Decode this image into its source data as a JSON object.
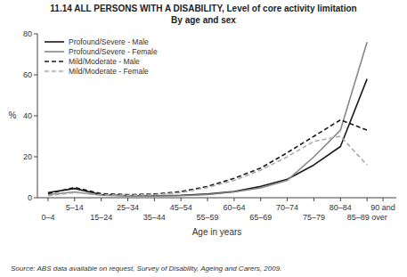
{
  "chart_data": {
    "type": "line",
    "title": "11.14   ALL PERSONS WITH A DISABILITY, Level of core activity limitation",
    "subtitle": "By age and sex",
    "xlabel": "Age in years",
    "ylabel": "%",
    "source": "Source: ABS data available on request,  Survey of Disability, Ageing and Carers,  2009.",
    "categories": [
      "0–4",
      "5–14",
      "15–24",
      "25–34",
      "35–44",
      "45–54",
      "55–59",
      "60–64",
      "65–69",
      "70–74",
      "75–79",
      "80–84",
      "85–89 over"
    ],
    "annotations": [
      {
        "text": "90 and"
      }
    ],
    "ylim": [
      0,
      80
    ],
    "yticks": [
      0,
      20,
      40,
      60,
      80
    ],
    "grid": false,
    "legend": "upper left",
    "series": [
      {
        "name": "Profound/Severe - Male",
        "color": "#1a1a1a",
        "line_style": "solid",
        "values": [
          2.5,
          4.5,
          1.5,
          1.0,
          1.0,
          1.2,
          1.8,
          3.0,
          5.5,
          9.0,
          16.0,
          25.0,
          58.0
        ]
      },
      {
        "name": "Profound/Severe - Female",
        "color": "#888888",
        "line_style": "solid",
        "values": [
          1.5,
          2.8,
          1.2,
          0.8,
          0.8,
          1.0,
          1.5,
          2.8,
          4.8,
          8.5,
          20.0,
          33.0,
          76.0
        ]
      },
      {
        "name": "Mild/Moderate - Male",
        "color": "#1a1a1a",
        "line_style": "dashed",
        "values": [
          2.0,
          5.0,
          2.0,
          1.5,
          1.8,
          3.0,
          5.5,
          9.5,
          14.5,
          22.0,
          30.0,
          38.0,
          33.0
        ]
      },
      {
        "name": "Mild/Moderate - Female",
        "color": "#aaaaaa",
        "line_style": "dashed",
        "values": [
          1.0,
          2.5,
          1.5,
          1.2,
          1.5,
          2.5,
          5.0,
          8.5,
          13.5,
          20.0,
          27.5,
          30.0,
          16.0
        ]
      }
    ]
  }
}
